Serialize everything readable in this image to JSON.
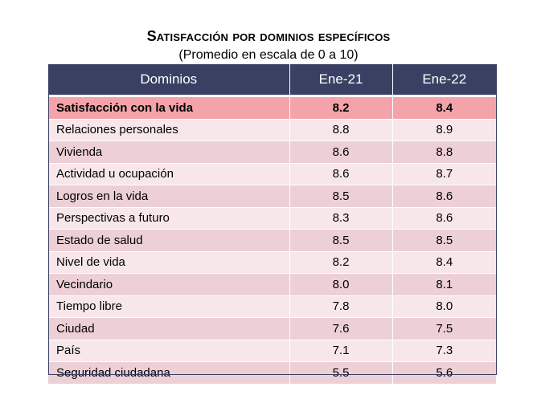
{
  "chart_data": {
    "type": "table",
    "title": "Satisfacción por dominios específicos",
    "subtitle": "(Promedio en escala de 0 a 10)",
    "columns": [
      "Dominios",
      "Ene-21",
      "Ene-22"
    ],
    "rows": [
      {
        "dominio": "Satisfacción con la vida",
        "ene21": "8.2",
        "ene22": "8.4",
        "highlight": true
      },
      {
        "dominio": "Relaciones personales",
        "ene21": "8.8",
        "ene22": "8.9"
      },
      {
        "dominio": "Vivienda",
        "ene21": "8.6",
        "ene22": "8.8"
      },
      {
        "dominio": "Actividad u ocupación",
        "ene21": "8.6",
        "ene22": "8.7"
      },
      {
        "dominio": "Logros en la vida",
        "ene21": "8.5",
        "ene22": "8.6"
      },
      {
        "dominio": "Perspectivas a futuro",
        "ene21": "8.3",
        "ene22": "8.6"
      },
      {
        "dominio": "Estado de salud",
        "ene21": "8.5",
        "ene22": "8.5"
      },
      {
        "dominio": "Nivel de vida",
        "ene21": "8.2",
        "ene22": "8.4"
      },
      {
        "dominio": "Vecindario",
        "ene21": "8.0",
        "ene22": "8.1"
      },
      {
        "dominio": "Tiempo libre",
        "ene21": "7.8",
        "ene22": "8.0"
      },
      {
        "dominio": "Ciudad",
        "ene21": "7.6",
        "ene22": "7.5"
      },
      {
        "dominio": "País",
        "ene21": "7.1",
        "ene22": "7.3"
      },
      {
        "dominio": "Seguridad ciudadana",
        "ene21": "5.5",
        "ene22": "5.6"
      }
    ],
    "colors": {
      "header_bg": "#3a4063",
      "highlight_bg": "#f4a3aa",
      "row_light": "#f7e7ea",
      "row_dark": "#ecd0d6"
    }
  }
}
